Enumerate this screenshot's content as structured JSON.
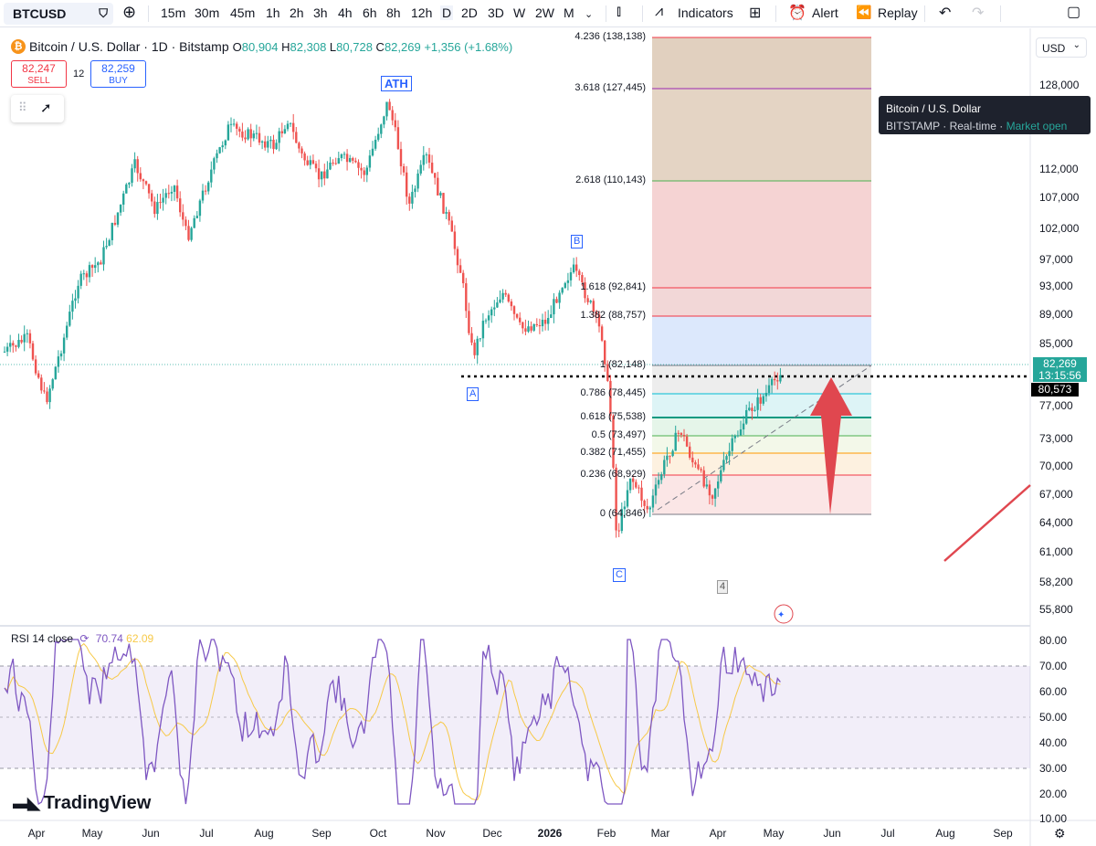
{
  "toolbar": {
    "symbol": "BTCUSD",
    "intervals": [
      "15m",
      "30m",
      "45m",
      "1h",
      "2h",
      "3h",
      "4h",
      "6h",
      "8h",
      "12h",
      "D",
      "2D",
      "3D",
      "W",
      "2W",
      "M"
    ],
    "active_interval": "D",
    "indicators_label": "Indicators",
    "alert_label": "Alert",
    "replay_label": "Replay"
  },
  "legend": {
    "title": "Bitcoin / U.S. Dollar · 1D · Bitstamp",
    "open_label": "O",
    "open": "80,904",
    "high_label": "H",
    "high": "82,308",
    "low_label": "L",
    "low": "80,728",
    "close_label": "C",
    "close": "82,269",
    "change": "+1,356 (+1.68%)",
    "sell_price": "82,247",
    "sell_label": "SELL",
    "buy_price": "82,259",
    "buy_label": "BUY",
    "spread": "12"
  },
  "price_axis": {
    "currency": "USD",
    "ticks": [
      "128,000",
      "112,000",
      "107,000",
      "102,000",
      "97,000",
      "93,000",
      "89,000",
      "85,000",
      "77,000",
      "73,000",
      "70,000",
      "67,000",
      "64,000",
      "61,000",
      "58,200",
      "55,800"
    ],
    "last_price": "82,269",
    "countdown": "13:15:56",
    "crosshair_price": "80,573"
  },
  "tooltip": {
    "title": "Bitcoin / U.S. Dollar",
    "exchange": "BITSTAMP",
    "feed": "Real-time",
    "status": "Market open"
  },
  "fib_levels": [
    {
      "label": "4.236 (138,138)",
      "color": "#f23645"
    },
    {
      "label": "3.618 (127,445)",
      "color": "#9c27b0"
    },
    {
      "label": "2.618 (110,143)",
      "color": "#4caf50"
    },
    {
      "label": "1.618 (92,841)",
      "color": "#f23645"
    },
    {
      "label": "1.382 (88,757)",
      "color": "#f23645"
    },
    {
      "label": "1 (82,148)",
      "color": "#787b86"
    },
    {
      "label": "0.786 (78,445)",
      "color": "#00bcd4"
    },
    {
      "label": "0.618 (75,538)",
      "color": "#089981"
    },
    {
      "label": "0.5 (73,497)",
      "color": "#4caf50"
    },
    {
      "label": "0.382 (71,455)",
      "color": "#ff9800"
    },
    {
      "label": "0.236 (68,929)",
      "color": "#f23645"
    },
    {
      "label": "0 (64,846)",
      "color": "#787b86"
    }
  ],
  "wave_labels": {
    "ath": "ATH",
    "a": "A",
    "b": "B",
    "c": "C",
    "four": "4"
  },
  "rsi": {
    "label": "RSI 14 close",
    "value": "70.74",
    "ma_value": "62.09",
    "ticks": [
      "80.00",
      "70.00",
      "60.00",
      "50.00",
      "40.00",
      "30.00",
      "20.00",
      "10.00"
    ]
  },
  "time_axis": {
    "labels": [
      "Apr",
      "May",
      "Jun",
      "Jul",
      "Aug",
      "Sep",
      "Oct",
      "Nov",
      "Dec",
      "2026",
      "Feb",
      "Mar",
      "Apr",
      "May",
      "Jun",
      "Jul",
      "Aug",
      "Sep"
    ],
    "bold_label": "2026"
  },
  "brand": "TradingView"
}
